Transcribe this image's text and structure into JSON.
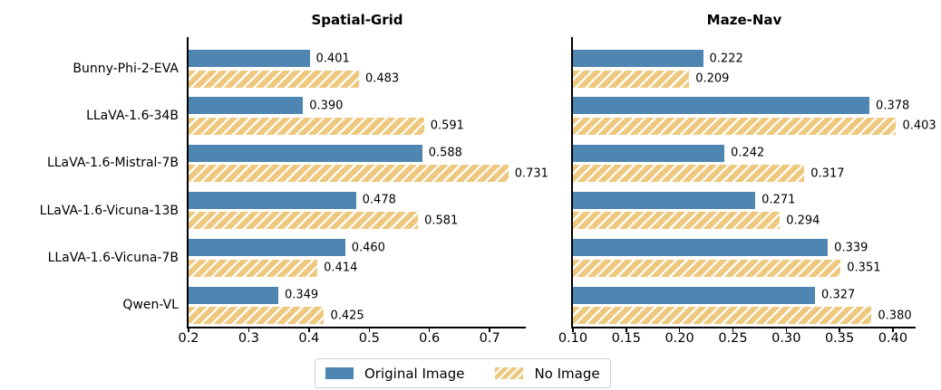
{
  "figure": {
    "background": "#ffffff"
  },
  "chart_data": {
    "type": "bar",
    "orientation": "horizontal",
    "grid": false,
    "categories": [
      "Bunny-Phi-2-EVA",
      "LLaVA-1.6-34B",
      "LLaVA-1.6-Mistral-7B",
      "LLaVA-1.6-Vicuna-13B",
      "LLaVA-1.6-Vicuna-7B",
      "Qwen-VL"
    ],
    "colors": {
      "original_image": "#4E86B1",
      "no_image": "#EEC87E",
      "hatch": "#ffffff",
      "axis": "#000000",
      "text": "#000000",
      "legend_border": "#cfcfcf"
    },
    "value_label_decimals": 3,
    "panels": [
      {
        "title": "Spatial-Grid",
        "xlim": [
          0.2,
          0.76
        ],
        "xticks": [
          {
            "value": 0.2,
            "label": "0.2"
          },
          {
            "value": 0.3,
            "label": "0.3"
          },
          {
            "value": 0.4,
            "label": "0.4"
          },
          {
            "value": 0.5,
            "label": "0.5"
          },
          {
            "value": 0.6,
            "label": "0.6"
          },
          {
            "value": 0.7,
            "label": "0.7"
          }
        ],
        "show_category_labels": true,
        "series": [
          {
            "name": "Original Image",
            "values": [
              0.401,
              0.39,
              0.588,
              0.478,
              0.46,
              0.349
            ]
          },
          {
            "name": "No Image",
            "values": [
              0.483,
              0.591,
              0.731,
              0.581,
              0.414,
              0.425
            ]
          }
        ]
      },
      {
        "title": "Maze-Nav",
        "xlim": [
          0.1,
          0.4213
        ],
        "xticks": [
          {
            "value": 0.1,
            "label": "0.10"
          },
          {
            "value": 0.15,
            "label": "0.15"
          },
          {
            "value": 0.2,
            "label": "0.20"
          },
          {
            "value": 0.25,
            "label": "0.25"
          },
          {
            "value": 0.3,
            "label": "0.30"
          },
          {
            "value": 0.35,
            "label": "0.35"
          },
          {
            "value": 0.4,
            "label": "0.40"
          }
        ],
        "show_category_labels": false,
        "series": [
          {
            "name": "Original Image",
            "values": [
              0.222,
              0.378,
              0.242,
              0.271,
              0.339,
              0.327
            ]
          },
          {
            "name": "No Image",
            "values": [
              0.209,
              0.403,
              0.317,
              0.294,
              0.351,
              0.38
            ]
          }
        ]
      }
    ],
    "legend": {
      "position": "bottom-center",
      "items": [
        {
          "label": "Original Image",
          "style": "solid"
        },
        {
          "label": "No Image",
          "style": "hatched"
        }
      ]
    }
  }
}
